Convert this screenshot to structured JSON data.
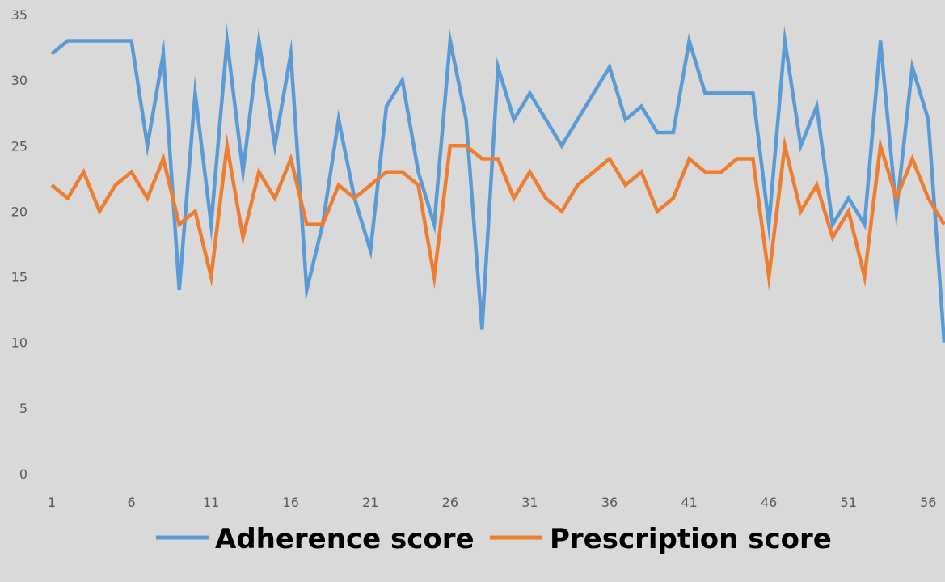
{
  "chart_data": {
    "type": "line",
    "title": "",
    "xlabel": "",
    "ylabel": "",
    "ylim": [
      0,
      35
    ],
    "yticks": [
      0,
      5,
      10,
      15,
      20,
      25,
      30,
      35
    ],
    "xtick_labels": [
      "1",
      "6",
      "11",
      "16",
      "21",
      "26",
      "31",
      "36",
      "41",
      "46",
      "51",
      "56"
    ],
    "grid": false,
    "legend_position": "bottom",
    "x": [
      1,
      2,
      3,
      4,
      5,
      6,
      7,
      8,
      9,
      10,
      11,
      12,
      13,
      14,
      15,
      16,
      17,
      18,
      19,
      20,
      21,
      22,
      23,
      24,
      25,
      26,
      27,
      28,
      29,
      30,
      31,
      32,
      33,
      34,
      35,
      36,
      37,
      38,
      39,
      40,
      41,
      42,
      43,
      44,
      45,
      46,
      47,
      48,
      49,
      50,
      51,
      52,
      53,
      54,
      55,
      56,
      57
    ],
    "series": [
      {
        "name": "Adherence score",
        "color": "#5b9bd5",
        "values": [
          32,
          33,
          33,
          33,
          33,
          33,
          25,
          32,
          14,
          29,
          19,
          33,
          23,
          33,
          25,
          32,
          14,
          19,
          27,
          21,
          17,
          28,
          30,
          23,
          19,
          33,
          27,
          11,
          31,
          27,
          29,
          27,
          25,
          27,
          29,
          31,
          27,
          28,
          26,
          26,
          33,
          29,
          29,
          29,
          29,
          19,
          33,
          25,
          28,
          19,
          21,
          19,
          33,
          20,
          31,
          27,
          10
        ]
      },
      {
        "name": "Prescription score",
        "color": "#ed7d31",
        "values": [
          22,
          21,
          23,
          20,
          22,
          23,
          21,
          24,
          19,
          20,
          15,
          25,
          18,
          23,
          21,
          24,
          19,
          19,
          22,
          21,
          22,
          23,
          23,
          22,
          15,
          25,
          25,
          24,
          24,
          21,
          23,
          21,
          20,
          22,
          23,
          24,
          22,
          23,
          20,
          21,
          24,
          23,
          23,
          24,
          24,
          15,
          25,
          20,
          22,
          18,
          20,
          15,
          25,
          21,
          24,
          21,
          19
        ]
      }
    ]
  }
}
